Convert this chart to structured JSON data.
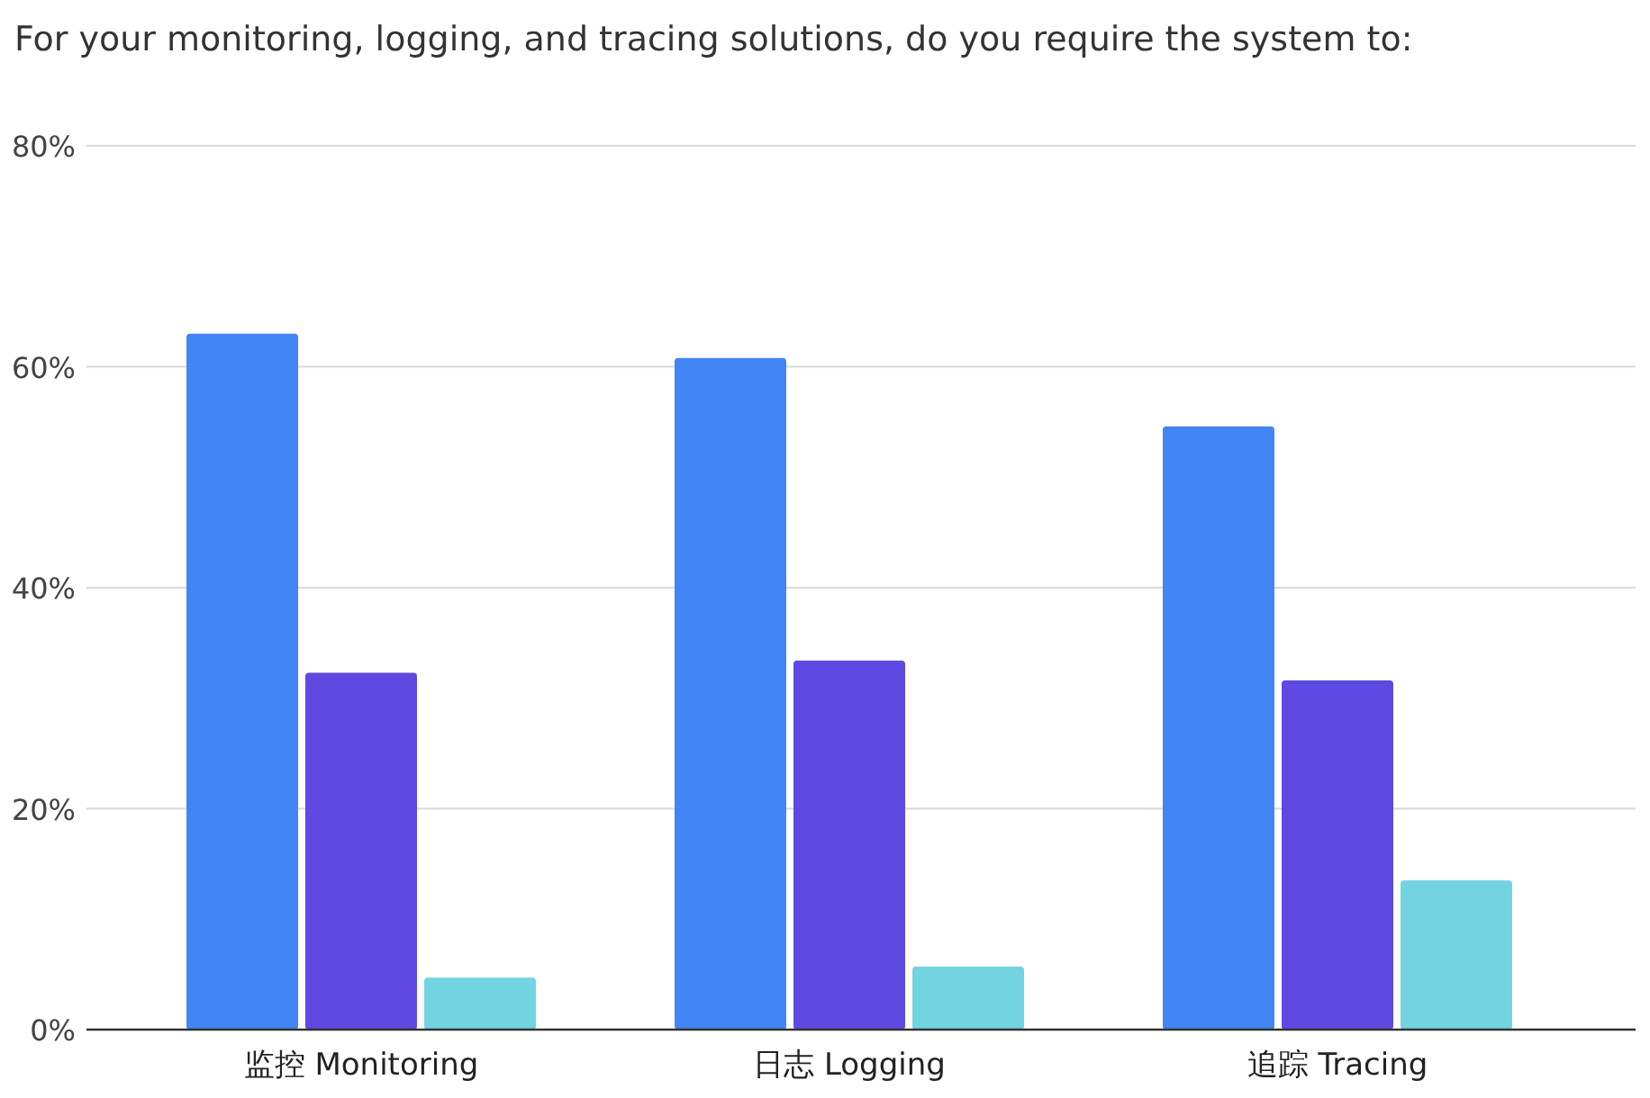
{
  "chart_data": {
    "type": "bar",
    "title": "For your monitoring, logging, and tracing solutions, do you require the system to:",
    "categories": [
      "监控 Monitoring",
      "日志 Logging",
      "追踪 Tracing"
    ],
    "series": [
      {
        "color": "#4285f4",
        "values": [
          63,
          60.8,
          54.6
        ]
      },
      {
        "color": "#5e4ae3",
        "values": [
          32.3,
          33.4,
          31.6
        ]
      },
      {
        "color": "#72d4e0",
        "values": [
          4.7,
          5.7,
          13.5
        ]
      }
    ],
    "ylim": [
      0,
      80
    ],
    "yticks": [
      {
        "value": 0,
        "label": "0%"
      },
      {
        "value": 20,
        "label": "20%"
      },
      {
        "value": 40,
        "label": "40%"
      },
      {
        "value": 60,
        "label": "60%"
      },
      {
        "value": 80,
        "label": "80%"
      }
    ],
    "grid": "y"
  }
}
